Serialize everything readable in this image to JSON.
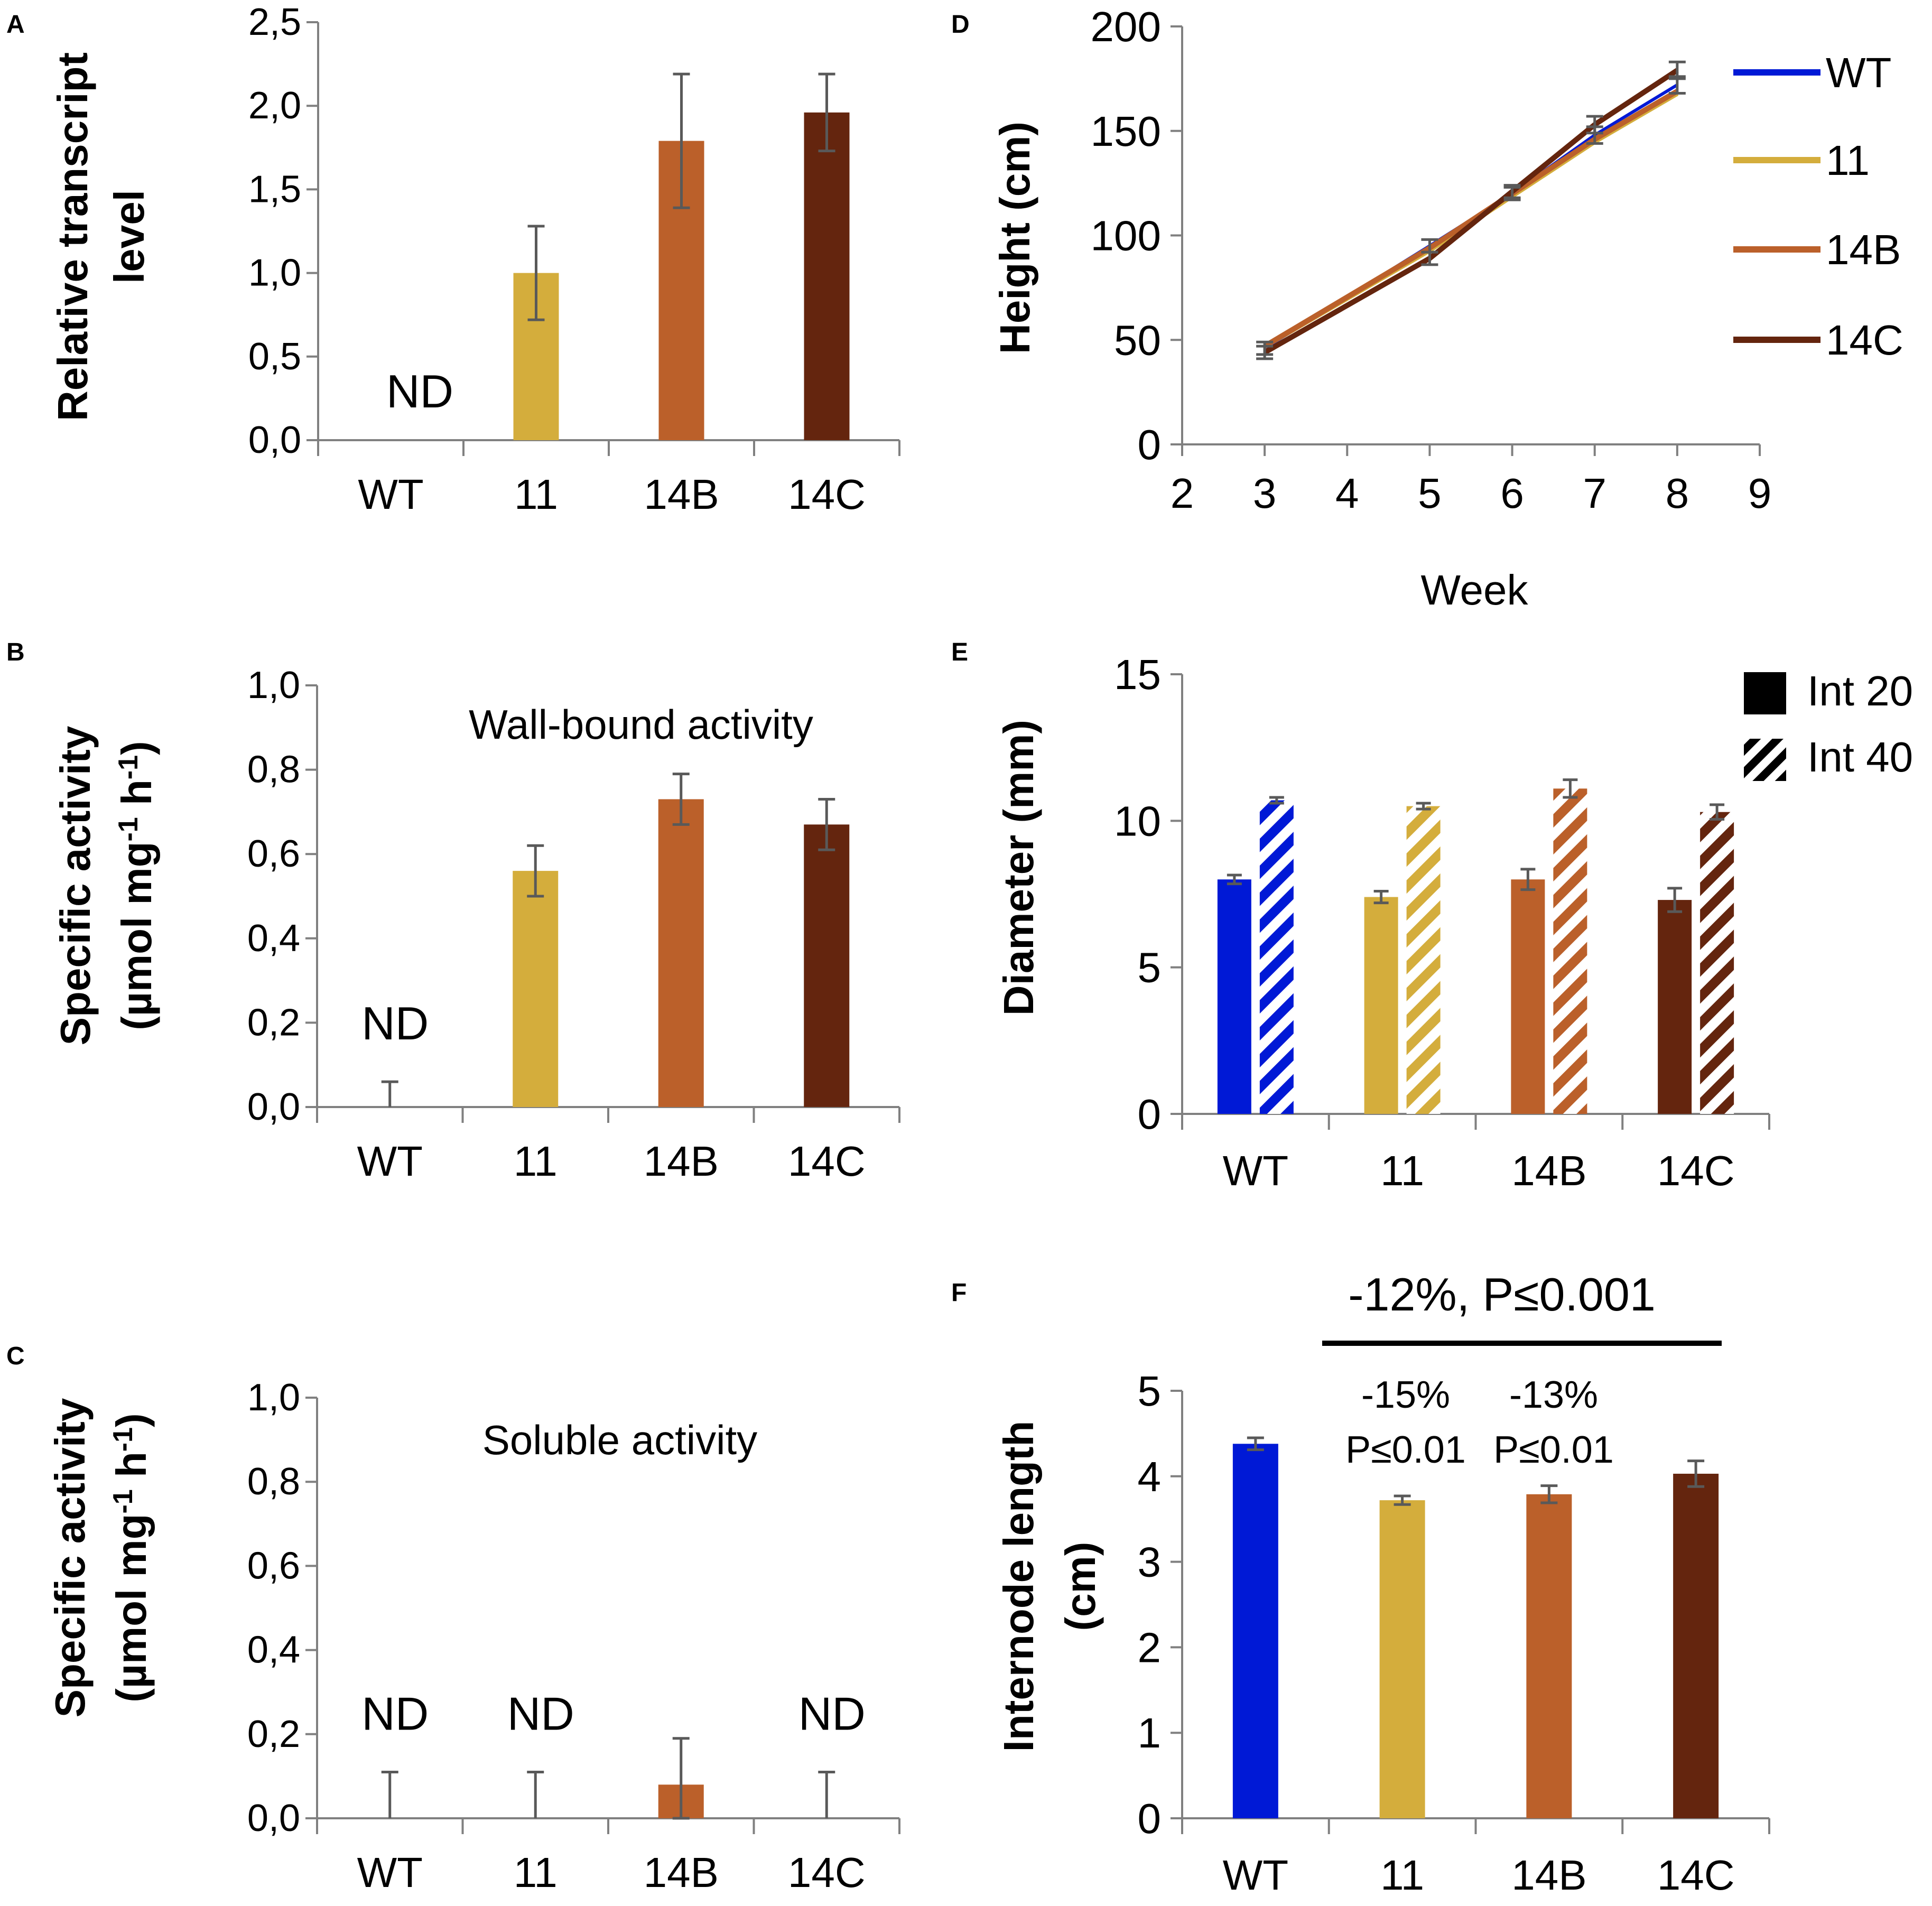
{
  "colors": {
    "WT": "#0019d6",
    "11": "#d4ad3c",
    "14B": "#bb602a",
    "14C": "#64250e",
    "axis": "#808080",
    "error": "#595959"
  },
  "panels": {
    "A": {
      "letter": "A",
      "ylabel_line1": "Relative transcript",
      "ylabel_line2": "level",
      "nd_labels": [
        "ND"
      ]
    },
    "B": {
      "letter": "B",
      "ylabel_line1": "Specific activity",
      "ylabel_line2_prefix": "(µmol mg",
      "ylabel_sup1": "-1",
      "ylabel_mid": " h",
      "ylabel_sup2": "-1",
      "ylabel_suffix": ")",
      "inset_title": "Wall-bound activity",
      "nd_labels": [
        "ND"
      ]
    },
    "C": {
      "letter": "C",
      "ylabel_line1": "Specific activity",
      "ylabel_line2_prefix": "(µmol mg",
      "ylabel_sup1": "-1",
      "ylabel_mid": " h",
      "ylabel_sup2": "-1",
      "ylabel_suffix": ")",
      "inset_title": "Soluble activity",
      "nd_labels": [
        "ND",
        "ND",
        "ND"
      ]
    },
    "D": {
      "letter": "D",
      "ylabel": "Height (cm)",
      "xlabel": "Week"
    },
    "E": {
      "letter": "E",
      "ylabel": "Diameter (mm)",
      "legend": [
        "Int 20",
        "Int 40"
      ]
    },
    "F": {
      "letter": "F",
      "ylabel_line1": "Internode length",
      "ylabel_line2": "(cm)",
      "overall": "-12%, P≤0.001",
      "annot_11_pct": "-15%",
      "annot_11_p": "P≤0.01",
      "annot_14B_pct": "-13%",
      "annot_14B_p": "P≤0.01"
    }
  },
  "chart_data": [
    {
      "id": "A",
      "type": "bar",
      "categories": [
        "WT",
        "11",
        "14B",
        "14C"
      ],
      "values": [
        0,
        1.0,
        1.79,
        1.96
      ],
      "errors": [
        null,
        0.28,
        0.4,
        0.23
      ],
      "not_detected": [
        "WT"
      ],
      "ylim": [
        0,
        2.5
      ],
      "yticks": [
        "0,0",
        "0,5",
        "1,0",
        "1,5",
        "2,0",
        "2,5"
      ],
      "ylabel": "Relative transcript level",
      "xlabel": ""
    },
    {
      "id": "B",
      "type": "bar",
      "title": "Wall-bound activity",
      "categories": [
        "WT",
        "11",
        "14B",
        "14C"
      ],
      "values": [
        0,
        0.56,
        0.73,
        0.67
      ],
      "errors": [
        0.06,
        0.06,
        0.06,
        0.06
      ],
      "not_detected": [
        "WT"
      ],
      "ylim": [
        0,
        1.0
      ],
      "yticks": [
        "0,0",
        "0,2",
        "0,4",
        "0,6",
        "0,8",
        "1,0"
      ],
      "ylabel": "Specific activity (µmol mg-1 h-1)",
      "xlabel": ""
    },
    {
      "id": "C",
      "type": "bar",
      "title": "Soluble activity",
      "categories": [
        "WT",
        "11",
        "14B",
        "14C"
      ],
      "values": [
        0,
        0,
        0.08,
        0
      ],
      "errors": [
        0.11,
        0.11,
        0.11,
        0.11
      ],
      "not_detected": [
        "WT",
        "11",
        "14C"
      ],
      "ylim": [
        0,
        1.0
      ],
      "yticks": [
        "0,0",
        "0,2",
        "0,4",
        "0,6",
        "0,8",
        "1,0"
      ],
      "ylabel": "Specific activity (µmol mg-1 h-1)",
      "xlabel": ""
    },
    {
      "id": "D",
      "type": "line",
      "x": [
        3,
        5,
        6,
        7,
        8
      ],
      "series": [
        {
          "name": "WT",
          "values": [
            46,
            95,
            120,
            148,
            172
          ],
          "errors": [
            3,
            3,
            3,
            4,
            4
          ]
        },
        {
          "name": "11",
          "values": [
            47,
            93,
            119,
            145,
            168
          ],
          "errors": [
            3,
            3,
            3,
            4,
            4
          ]
        },
        {
          "name": "14B",
          "values": [
            47,
            94,
            120,
            146,
            169
          ],
          "errors": [
            3,
            3,
            3,
            4,
            4
          ]
        },
        {
          "name": "14C",
          "values": [
            44,
            89,
            121,
            153,
            179
          ],
          "errors": [
            3,
            3,
            3,
            4,
            4
          ]
        }
      ],
      "xlim": [
        2,
        9
      ],
      "ylim": [
        0,
        200
      ],
      "xticks": [
        "2",
        "3",
        "4",
        "5",
        "6",
        "7",
        "8",
        "9"
      ],
      "yticks": [
        "0",
        "50",
        "100",
        "150",
        "200"
      ],
      "xlabel": "Week",
      "ylabel": "Height (cm)",
      "legend_position": "right"
    },
    {
      "id": "E",
      "type": "bar",
      "categories": [
        "WT",
        "11",
        "14B",
        "14C"
      ],
      "series": [
        {
          "name": "Int 20",
          "style": "solid",
          "values": [
            8.0,
            7.4,
            8.0,
            7.3
          ],
          "errors": [
            0.15,
            0.2,
            0.35,
            0.4
          ]
        },
        {
          "name": "Int 40",
          "style": "hatched",
          "values": [
            10.7,
            10.5,
            11.1,
            10.3
          ],
          "errors": [
            0.1,
            0.1,
            0.3,
            0.25
          ]
        }
      ],
      "ylim": [
        0,
        15
      ],
      "yticks": [
        "0",
        "5",
        "10",
        "15"
      ],
      "ylabel": "Diameter (mm)",
      "xlabel": "",
      "legend_position": "top-right"
    },
    {
      "id": "F",
      "type": "bar",
      "categories": [
        "WT",
        "11",
        "14B",
        "14C"
      ],
      "values": [
        4.38,
        3.72,
        3.79,
        4.03
      ],
      "errors": [
        0.07,
        0.05,
        0.1,
        0.15
      ],
      "ylim": [
        0,
        5
      ],
      "yticks": [
        "0",
        "1",
        "2",
        "3",
        "4",
        "5"
      ],
      "ylabel": "Internode length (cm)",
      "xlabel": "",
      "annotations": [
        "-15% P≤0.01",
        "-13% P≤0.01",
        "-12%, P≤0.001"
      ]
    }
  ]
}
